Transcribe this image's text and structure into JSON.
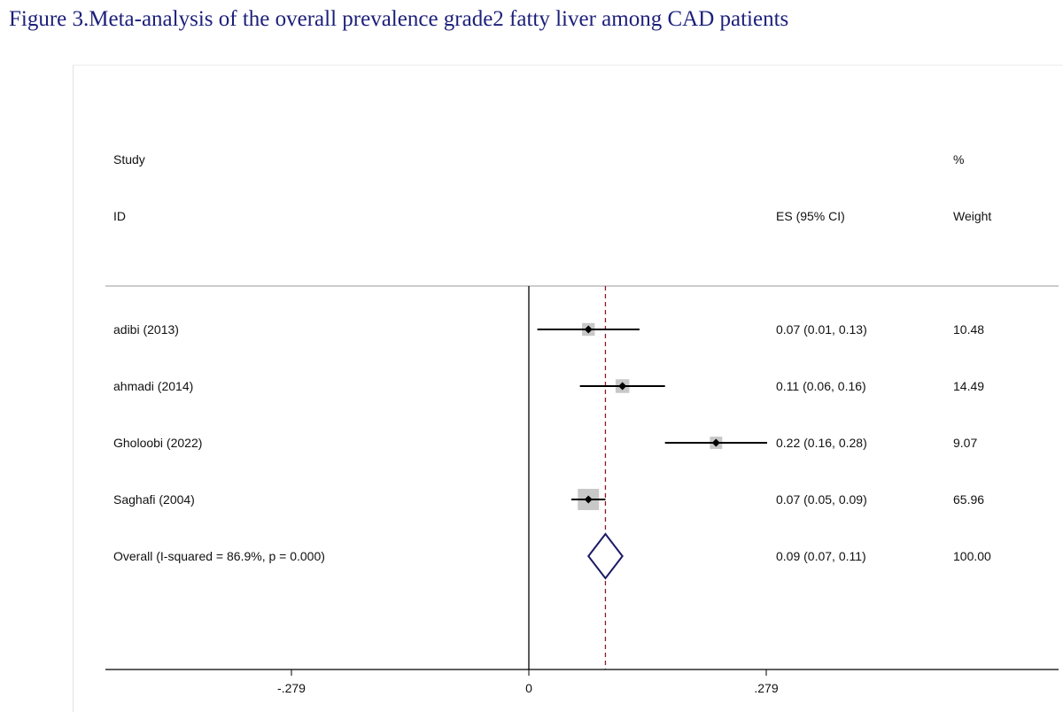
{
  "figure_title": "Figure 3.Meta-analysis of the overall prevalence grade2 fatty liver among CAD patients",
  "headers": {
    "study_line1": "Study",
    "study_line2": "ID",
    "es": "ES (95% CI)",
    "weight_line1": "%",
    "weight_line2": "Weight"
  },
  "colors": {
    "ink": "#000000",
    "weight_box": "#c8c8c8",
    "overall_line": "#8b1a2b",
    "diamond": "#1a1a66"
  },
  "chart_data": {
    "type": "forest",
    "title": "Figure 3.Meta-analysis of the overall prevalence grade2 fatty liver among CAD patients",
    "xlabel": "",
    "ylabel": "",
    "xlim": [
      -0.279,
      0.279
    ],
    "x_ticks": [
      -0.279,
      0,
      0.279
    ],
    "x_tick_labels": [
      "-.279",
      "0",
      ".279"
    ],
    "null_line": 0,
    "studies": [
      {
        "id": "adibi (2013)",
        "es": 0.07,
        "lo": 0.01,
        "hi": 0.13,
        "es_ci": "0.07 (0.01, 0.13)",
        "weight": 10.48,
        "weight_label": "10.48"
      },
      {
        "id": "ahmadi (2014)",
        "es": 0.11,
        "lo": 0.06,
        "hi": 0.16,
        "es_ci": "0.11 (0.06, 0.16)",
        "weight": 14.49,
        "weight_label": "14.49"
      },
      {
        "id": "Gholoobi (2022)",
        "es": 0.22,
        "lo": 0.16,
        "hi": 0.28,
        "es_ci": "0.22 (0.16, 0.28)",
        "weight": 9.07,
        "weight_label": "9.07"
      },
      {
        "id": "Saghafi (2004)",
        "es": 0.07,
        "lo": 0.05,
        "hi": 0.09,
        "es_ci": "0.07 (0.05, 0.09)",
        "weight": 65.96,
        "weight_label": "65.96"
      }
    ],
    "overall": {
      "label": "Overall  (I-squared = 86.9%, p = 0.000)",
      "es": 0.09,
      "lo": 0.07,
      "hi": 0.11,
      "es_ci": "0.09 (0.07, 0.11)",
      "weight": 100.0,
      "weight_label": "100.00"
    }
  }
}
